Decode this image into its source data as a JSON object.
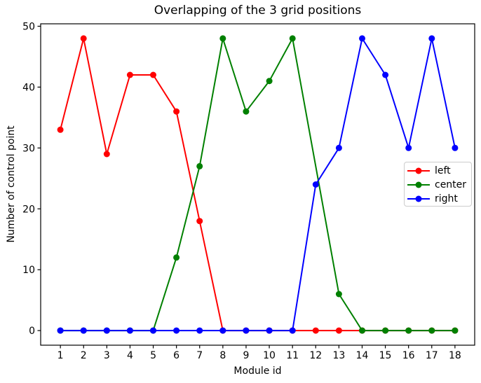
{
  "chart_data": {
    "type": "line",
    "title": "Overlapping of the 3 grid positions",
    "xlabel": "Module id",
    "ylabel": "Number of control point",
    "x": [
      1,
      2,
      3,
      4,
      5,
      6,
      7,
      8,
      9,
      10,
      11,
      12,
      13,
      14,
      15,
      16,
      17,
      18
    ],
    "xlim": [
      0.15,
      18.85
    ],
    "ylim": [
      -2.4,
      50.4
    ],
    "y_ticks": [
      0,
      10,
      20,
      30,
      40,
      50
    ],
    "grid": false,
    "marker": "o",
    "legend_position": "center right",
    "series": [
      {
        "name": "left",
        "color": "#ff0000",
        "values": [
          33,
          48,
          29,
          42,
          42,
          36,
          18,
          0,
          0,
          0,
          0,
          0,
          0,
          0,
          0,
          0,
          0,
          0
        ]
      },
      {
        "name": "center",
        "color": "#008000",
        "values": [
          0,
          0,
          0,
          0,
          0,
          12,
          27,
          48,
          36,
          41,
          48,
          null,
          6,
          0,
          0,
          0,
          0,
          0
        ]
      },
      {
        "name": "right",
        "color": "#0000ff",
        "values": [
          0,
          0,
          0,
          0,
          0,
          0,
          0,
          0,
          0,
          0,
          0,
          24,
          30,
          48,
          42,
          30,
          48,
          30
        ]
      }
    ]
  }
}
